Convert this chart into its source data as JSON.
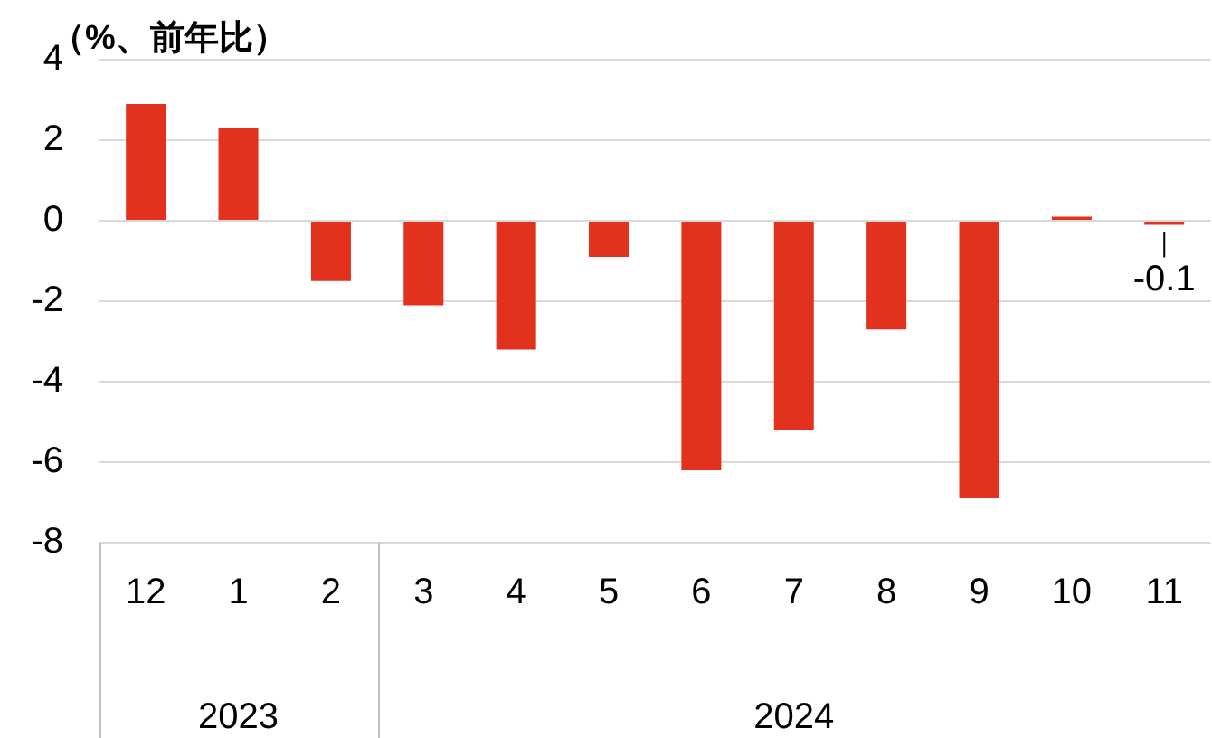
{
  "chart_data": {
    "type": "bar",
    "ylabel": "（%、前年比）",
    "categories": [
      "12",
      "1",
      "2",
      "3",
      "4",
      "5",
      "6",
      "7",
      "8",
      "9",
      "10",
      "11"
    ],
    "values": [
      2.9,
      2.3,
      -1.5,
      -2.1,
      -3.2,
      -0.9,
      -6.2,
      -5.2,
      -2.7,
      -6.9,
      0.1,
      -0.1
    ],
    "value_labels": [
      null,
      null,
      null,
      null,
      null,
      null,
      null,
      null,
      null,
      null,
      null,
      "-0.1"
    ],
    "color": "#e2311d",
    "ylim": [
      -8,
      4
    ],
    "yticks": [
      -8,
      -6,
      -4,
      -2,
      0,
      2,
      4
    ],
    "grid": "y",
    "legend": false,
    "annotations": [
      "2023",
      "2024"
    ]
  }
}
